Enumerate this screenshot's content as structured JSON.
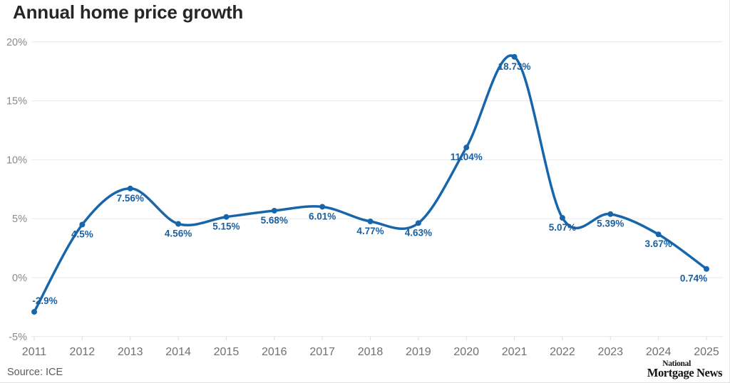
{
  "page": {
    "title": "Annual home price growth",
    "source": "Source: ICE",
    "logo": {
      "line1": "National",
      "line2": "Mortgage News"
    }
  },
  "chart_data": {
    "type": "line",
    "title": "Annual home price growth",
    "categories": [
      "2011",
      "2012",
      "2013",
      "2014",
      "2015",
      "2016",
      "2017",
      "2018",
      "2019",
      "2020",
      "2021",
      "2022",
      "2023",
      "2024",
      "2025"
    ],
    "values": [
      -2.9,
      4.5,
      7.56,
      4.56,
      5.15,
      5.68,
      6.01,
      4.77,
      4.63,
      11.04,
      18.73,
      5.07,
      5.39,
      3.67,
      0.74
    ],
    "point_labels": [
      "-2.9%",
      "4.5%",
      "7.56%",
      "4.56%",
      "5.15%",
      "5.68%",
      "6.01%",
      "4.77%",
      "4.63%",
      "11.04%",
      "18.73%",
      "5.07%",
      "5.39%",
      "3.67%",
      "0.74%"
    ],
    "y_tick_values": [
      20,
      15,
      10,
      5,
      0,
      -5
    ],
    "y_tick_labels": [
      "20%",
      "15%",
      "10%",
      "5%",
      "0%",
      "-5%"
    ],
    "ylim": [
      -5,
      20
    ],
    "xlabel": "",
    "ylabel": "",
    "grid": true,
    "legend": "none",
    "colors": {
      "line": "#1766ab",
      "point": "#1766ab",
      "data_label": "#1a5fa0",
      "grid": "#e8e8e8"
    },
    "label_offsets": {
      "0": [
        15,
        -11
      ],
      "14": [
        -18,
        18
      ]
    }
  }
}
